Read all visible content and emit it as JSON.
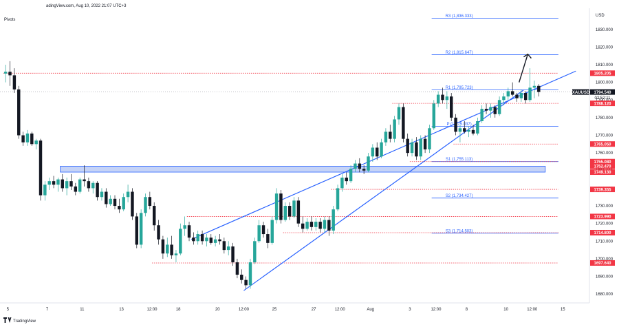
{
  "header": {
    "source": "adingView.com, Aug 10, 2022 21:07 UTC+3",
    "indicator": "Pivots"
  },
  "footer": {
    "logo_text": "TradingView"
  },
  "colors": {
    "up": "#26a69a",
    "down": "#131722",
    "resistance": "#f23645",
    "pivot": "#2962ff",
    "channel": "#2962ff",
    "zone_fill": "#c5d3f7"
  },
  "chart_data": {
    "type": "candlestick",
    "symbol": "XAUUSD",
    "currency": "USD",
    "ylim": [
      1675,
      1842
    ],
    "xlim": [
      0,
      133
    ],
    "price_ticks": [
      1830,
      1820,
      1810,
      1800,
      1790,
      1780,
      1770,
      1760,
      1750,
      1740,
      1730,
      1720,
      1710,
      1700,
      1690,
      1680
    ],
    "time_labels": [
      {
        "t": 1,
        "label": "5"
      },
      {
        "t": 10,
        "label": "7"
      },
      {
        "t": 18,
        "label": "11"
      },
      {
        "t": 27,
        "label": "13"
      },
      {
        "t": 34,
        "label": "12:00"
      },
      {
        "t": 40,
        "label": "18"
      },
      {
        "t": 49,
        "label": "20"
      },
      {
        "t": 55,
        "label": "12:00"
      },
      {
        "t": 62,
        "label": "25"
      },
      {
        "t": 71,
        "label": "27"
      },
      {
        "t": 77,
        "label": "12:00"
      },
      {
        "t": 84,
        "label": "Aug"
      },
      {
        "t": 93,
        "label": "3"
      },
      {
        "t": 99,
        "label": "12:00"
      },
      {
        "t": 106,
        "label": "8"
      },
      {
        "t": 115,
        "label": "10"
      },
      {
        "t": 121,
        "label": "12:00"
      },
      {
        "t": 128,
        "label": "15"
      }
    ],
    "price_tags": [
      {
        "value": 1805.205,
        "label": "1805.205",
        "kind": "resistance"
      },
      {
        "value": 1794.54,
        "label": "1794.540",
        "kind": "current",
        "countdown": "02:52:11"
      },
      {
        "value": 1788.12,
        "label": "1788.120",
        "kind": "resistance"
      },
      {
        "value": 1765.05,
        "label": "1765.050",
        "kind": "resistance"
      },
      {
        "value": 1755.08,
        "label": "1755.080",
        "kind": "resistance"
      },
      {
        "value": 1752.47,
        "label": "1752.470",
        "kind": "resistance"
      },
      {
        "value": 1749.13,
        "label": "1749.130",
        "kind": "resistance"
      },
      {
        "value": 1739.355,
        "label": "1739.355",
        "kind": "resistance"
      },
      {
        "value": 1723.99,
        "label": "1723.990",
        "kind": "resistance"
      },
      {
        "value": 1714.8,
        "label": "1714.800",
        "kind": "resistance"
      },
      {
        "value": 1697.64,
        "label": "1697.640",
        "kind": "resistance"
      }
    ],
    "pivots": [
      {
        "label": "R3 (1,836.333)",
        "value": 1836.333,
        "t0": 98,
        "t1": 127
      },
      {
        "label": "R2 (1,815.647)",
        "value": 1815.647,
        "t0": 98,
        "t1": 127
      },
      {
        "label": "R1 (1,795.723)",
        "value": 1795.723,
        "t0": 98,
        "t1": 127
      },
      {
        "label": "P (1,775.037)",
        "value": 1775.037,
        "t0": 98,
        "t1": 127
      },
      {
        "label": "S1 (1,755.113)",
        "value": 1755.113,
        "t0": 98,
        "t1": 127
      },
      {
        "label": "S2 (1,734.427)",
        "value": 1734.427,
        "t0": 98,
        "t1": 127
      },
      {
        "label": "S3 (1,714.503)",
        "value": 1714.503,
        "t0": 98,
        "t1": 127
      }
    ],
    "horizontal_levels": [
      {
        "value": 1805.205,
        "t0": 0,
        "t1": 127
      },
      {
        "value": 1788.12,
        "t0": 89,
        "t1": 127
      },
      {
        "value": 1765.05,
        "t0": 103,
        "t1": 127
      },
      {
        "value": 1755.08,
        "t0": 93,
        "t1": 127
      },
      {
        "value": 1739.355,
        "t0": 75,
        "t1": 127
      },
      {
        "value": 1723.99,
        "t0": 42,
        "t1": 127
      },
      {
        "value": 1714.8,
        "t0": 64,
        "t1": 127
      },
      {
        "value": 1697.64,
        "t0": 34,
        "t1": 127
      }
    ],
    "support_zone": {
      "top": 1752.47,
      "bottom": 1749.13,
      "t0": 13,
      "t1": 124
    },
    "channel": {
      "upper": [
        [
          43,
          1711
        ],
        [
          100,
          1773
        ],
        [
          131,
          1806.4
        ]
      ],
      "lower": [
        [
          55,
          1682
        ],
        [
          102,
          1765.5
        ],
        [
          119,
          1795.6
        ]
      ]
    },
    "arrow": {
      "from": [
        118,
        1800
      ],
      "to": [
        120,
        1816
      ]
    },
    "candles": [
      {
        "o": 1805,
        "h": 1810,
        "l": 1800,
        "c": 1806
      },
      {
        "o": 1806,
        "h": 1812,
        "l": 1798,
        "c": 1804
      },
      {
        "o": 1804,
        "h": 1808,
        "l": 1794,
        "c": 1796
      },
      {
        "o": 1796,
        "h": 1798,
        "l": 1768,
        "c": 1770
      },
      {
        "o": 1770,
        "h": 1772,
        "l": 1764,
        "c": 1766
      },
      {
        "o": 1766,
        "h": 1773,
        "l": 1764,
        "c": 1771
      },
      {
        "o": 1771,
        "h": 1772,
        "l": 1764,
        "c": 1765
      },
      {
        "o": 1765,
        "h": 1768,
        "l": 1762,
        "c": 1767
      },
      {
        "o": 1767,
        "h": 1768,
        "l": 1733,
        "c": 1736
      },
      {
        "o": 1736,
        "h": 1744,
        "l": 1733,
        "c": 1742
      },
      {
        "o": 1742,
        "h": 1746,
        "l": 1739,
        "c": 1744
      },
      {
        "o": 1744,
        "h": 1747,
        "l": 1740,
        "c": 1742
      },
      {
        "o": 1742,
        "h": 1746,
        "l": 1738,
        "c": 1745
      },
      {
        "o": 1745,
        "h": 1748,
        "l": 1738,
        "c": 1740
      },
      {
        "o": 1740,
        "h": 1746,
        "l": 1736,
        "c": 1744
      },
      {
        "o": 1744,
        "h": 1748,
        "l": 1739,
        "c": 1741
      },
      {
        "o": 1741,
        "h": 1743,
        "l": 1736,
        "c": 1738
      },
      {
        "o": 1738,
        "h": 1746,
        "l": 1737,
        "c": 1745
      },
      {
        "o": 1745,
        "h": 1753,
        "l": 1741,
        "c": 1744
      },
      {
        "o": 1744,
        "h": 1746,
        "l": 1738,
        "c": 1740
      },
      {
        "o": 1740,
        "h": 1744,
        "l": 1737,
        "c": 1743
      },
      {
        "o": 1743,
        "h": 1744,
        "l": 1733,
        "c": 1735
      },
      {
        "o": 1735,
        "h": 1740,
        "l": 1733,
        "c": 1738
      },
      {
        "o": 1738,
        "h": 1740,
        "l": 1729,
        "c": 1731
      },
      {
        "o": 1731,
        "h": 1736,
        "l": 1730,
        "c": 1734
      },
      {
        "o": 1734,
        "h": 1736,
        "l": 1728,
        "c": 1730
      },
      {
        "o": 1730,
        "h": 1734,
        "l": 1726,
        "c": 1728
      },
      {
        "o": 1728,
        "h": 1737,
        "l": 1727,
        "c": 1735
      },
      {
        "o": 1735,
        "h": 1742,
        "l": 1732,
        "c": 1738
      },
      {
        "o": 1738,
        "h": 1740,
        "l": 1722,
        "c": 1724
      },
      {
        "o": 1724,
        "h": 1726,
        "l": 1706,
        "c": 1708
      },
      {
        "o": 1708,
        "h": 1728,
        "l": 1706,
        "c": 1726
      },
      {
        "o": 1726,
        "h": 1737,
        "l": 1724,
        "c": 1735
      },
      {
        "o": 1735,
        "h": 1738,
        "l": 1728,
        "c": 1730
      },
      {
        "o": 1730,
        "h": 1732,
        "l": 1716,
        "c": 1719
      },
      {
        "o": 1719,
        "h": 1722,
        "l": 1708,
        "c": 1711
      },
      {
        "o": 1711,
        "h": 1713,
        "l": 1700,
        "c": 1703
      },
      {
        "o": 1703,
        "h": 1712,
        "l": 1701,
        "c": 1708
      },
      {
        "o": 1708,
        "h": 1713,
        "l": 1700,
        "c": 1702
      },
      {
        "o": 1702,
        "h": 1705,
        "l": 1698,
        "c": 1703
      },
      {
        "o": 1703,
        "h": 1720,
        "l": 1702,
        "c": 1717
      },
      {
        "o": 1717,
        "h": 1724,
        "l": 1713,
        "c": 1719
      },
      {
        "o": 1719,
        "h": 1721,
        "l": 1710,
        "c": 1712
      },
      {
        "o": 1712,
        "h": 1715,
        "l": 1708,
        "c": 1710
      },
      {
        "o": 1710,
        "h": 1716,
        "l": 1708,
        "c": 1714
      },
      {
        "o": 1714,
        "h": 1716,
        "l": 1708,
        "c": 1710
      },
      {
        "o": 1710,
        "h": 1714,
        "l": 1707,
        "c": 1712
      },
      {
        "o": 1712,
        "h": 1714,
        "l": 1708,
        "c": 1709
      },
      {
        "o": 1709,
        "h": 1713,
        "l": 1707,
        "c": 1711
      },
      {
        "o": 1711,
        "h": 1714,
        "l": 1708,
        "c": 1710
      },
      {
        "o": 1710,
        "h": 1712,
        "l": 1703,
        "c": 1705
      },
      {
        "o": 1705,
        "h": 1710,
        "l": 1702,
        "c": 1707
      },
      {
        "o": 1707,
        "h": 1709,
        "l": 1696,
        "c": 1698
      },
      {
        "o": 1698,
        "h": 1700,
        "l": 1689,
        "c": 1691
      },
      {
        "o": 1691,
        "h": 1694,
        "l": 1686,
        "c": 1688
      },
      {
        "o": 1688,
        "h": 1690,
        "l": 1683,
        "c": 1685
      },
      {
        "o": 1685,
        "h": 1700,
        "l": 1683,
        "c": 1698
      },
      {
        "o": 1698,
        "h": 1712,
        "l": 1697,
        "c": 1710
      },
      {
        "o": 1710,
        "h": 1722,
        "l": 1709,
        "c": 1719
      },
      {
        "o": 1719,
        "h": 1721,
        "l": 1712,
        "c": 1714
      },
      {
        "o": 1714,
        "h": 1717,
        "l": 1706,
        "c": 1709
      },
      {
        "o": 1709,
        "h": 1724,
        "l": 1708,
        "c": 1722
      },
      {
        "o": 1722,
        "h": 1740,
        "l": 1720,
        "c": 1737
      },
      {
        "o": 1737,
        "h": 1739,
        "l": 1720,
        "c": 1722
      },
      {
        "o": 1722,
        "h": 1732,
        "l": 1721,
        "c": 1730
      },
      {
        "o": 1730,
        "h": 1732,
        "l": 1722,
        "c": 1724
      },
      {
        "o": 1724,
        "h": 1735,
        "l": 1723,
        "c": 1733
      },
      {
        "o": 1733,
        "h": 1735,
        "l": 1718,
        "c": 1720
      },
      {
        "o": 1720,
        "h": 1724,
        "l": 1715,
        "c": 1717
      },
      {
        "o": 1717,
        "h": 1723,
        "l": 1716,
        "c": 1721
      },
      {
        "o": 1721,
        "h": 1724,
        "l": 1716,
        "c": 1718
      },
      {
        "o": 1718,
        "h": 1723,
        "l": 1716,
        "c": 1721
      },
      {
        "o": 1721,
        "h": 1723,
        "l": 1715,
        "c": 1717
      },
      {
        "o": 1717,
        "h": 1724,
        "l": 1715,
        "c": 1722
      },
      {
        "o": 1722,
        "h": 1724,
        "l": 1713,
        "c": 1716
      },
      {
        "o": 1716,
        "h": 1730,
        "l": 1714,
        "c": 1728
      },
      {
        "o": 1728,
        "h": 1742,
        "l": 1727,
        "c": 1740
      },
      {
        "o": 1740,
        "h": 1748,
        "l": 1738,
        "c": 1746
      },
      {
        "o": 1746,
        "h": 1749,
        "l": 1742,
        "c": 1744
      },
      {
        "o": 1744,
        "h": 1753,
        "l": 1743,
        "c": 1751
      },
      {
        "o": 1751,
        "h": 1756,
        "l": 1749,
        "c": 1754
      },
      {
        "o": 1754,
        "h": 1757,
        "l": 1749,
        "c": 1751
      },
      {
        "o": 1751,
        "h": 1753,
        "l": 1748,
        "c": 1750
      },
      {
        "o": 1750,
        "h": 1760,
        "l": 1749,
        "c": 1758
      },
      {
        "o": 1758,
        "h": 1765,
        "l": 1755,
        "c": 1763
      },
      {
        "o": 1763,
        "h": 1766,
        "l": 1756,
        "c": 1758
      },
      {
        "o": 1758,
        "h": 1768,
        "l": 1757,
        "c": 1766
      },
      {
        "o": 1766,
        "h": 1774,
        "l": 1764,
        "c": 1772
      },
      {
        "o": 1772,
        "h": 1776,
        "l": 1766,
        "c": 1768
      },
      {
        "o": 1768,
        "h": 1781,
        "l": 1766,
        "c": 1779
      },
      {
        "o": 1779,
        "h": 1788,
        "l": 1776,
        "c": 1786
      },
      {
        "o": 1786,
        "h": 1788,
        "l": 1766,
        "c": 1768
      },
      {
        "o": 1768,
        "h": 1771,
        "l": 1758,
        "c": 1760
      },
      {
        "o": 1760,
        "h": 1768,
        "l": 1758,
        "c": 1766
      },
      {
        "o": 1766,
        "h": 1769,
        "l": 1756,
        "c": 1758
      },
      {
        "o": 1758,
        "h": 1770,
        "l": 1756,
        "c": 1768
      },
      {
        "o": 1768,
        "h": 1770,
        "l": 1760,
        "c": 1762
      },
      {
        "o": 1762,
        "h": 1776,
        "l": 1760,
        "c": 1774
      },
      {
        "o": 1774,
        "h": 1790,
        "l": 1773,
        "c": 1788
      },
      {
        "o": 1788,
        "h": 1795,
        "l": 1786,
        "c": 1793
      },
      {
        "o": 1793,
        "h": 1797,
        "l": 1788,
        "c": 1790
      },
      {
        "o": 1790,
        "h": 1795,
        "l": 1785,
        "c": 1792
      },
      {
        "o": 1792,
        "h": 1794,
        "l": 1778,
        "c": 1780
      },
      {
        "o": 1780,
        "h": 1782,
        "l": 1770,
        "c": 1772
      },
      {
        "o": 1772,
        "h": 1776,
        "l": 1766,
        "c": 1774
      },
      {
        "o": 1774,
        "h": 1778,
        "l": 1771,
        "c": 1772
      },
      {
        "o": 1772,
        "h": 1775,
        "l": 1769,
        "c": 1773
      },
      {
        "o": 1773,
        "h": 1776,
        "l": 1770,
        "c": 1771
      },
      {
        "o": 1771,
        "h": 1780,
        "l": 1770,
        "c": 1778
      },
      {
        "o": 1778,
        "h": 1787,
        "l": 1777,
        "c": 1785
      },
      {
        "o": 1785,
        "h": 1788,
        "l": 1782,
        "c": 1784
      },
      {
        "o": 1784,
        "h": 1788,
        "l": 1780,
        "c": 1786
      },
      {
        "o": 1786,
        "h": 1787,
        "l": 1780,
        "c": 1782
      },
      {
        "o": 1782,
        "h": 1792,
        "l": 1781,
        "c": 1790
      },
      {
        "o": 1790,
        "h": 1794,
        "l": 1787,
        "c": 1792
      },
      {
        "o": 1792,
        "h": 1797,
        "l": 1790,
        "c": 1795
      },
      {
        "o": 1795,
        "h": 1800,
        "l": 1792,
        "c": 1793
      },
      {
        "o": 1793,
        "h": 1794,
        "l": 1789,
        "c": 1791
      },
      {
        "o": 1791,
        "h": 1796,
        "l": 1789,
        "c": 1794
      },
      {
        "o": 1794,
        "h": 1795,
        "l": 1788,
        "c": 1790
      },
      {
        "o": 1790,
        "h": 1808,
        "l": 1789,
        "c": 1797
      },
      {
        "o": 1797,
        "h": 1801,
        "l": 1791,
        "c": 1798
      },
      {
        "o": 1798,
        "h": 1799,
        "l": 1792,
        "c": 1794.54
      }
    ]
  }
}
